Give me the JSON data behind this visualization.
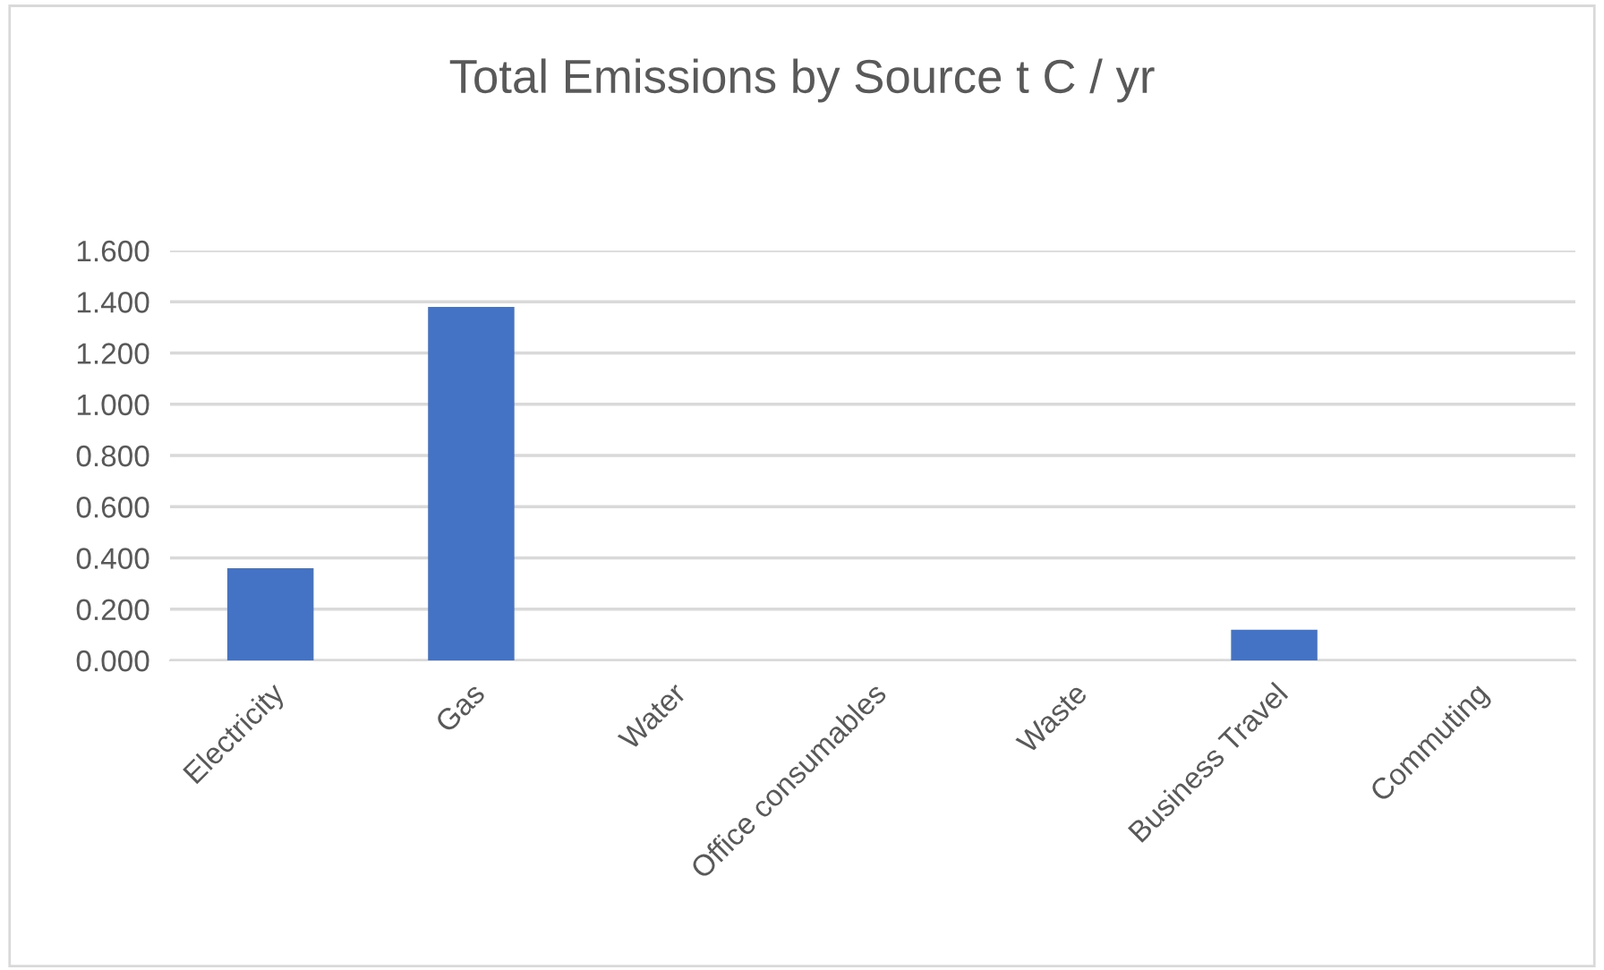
{
  "chart_data": {
    "type": "bar",
    "title": "Total Emissions by Source t C / yr",
    "categories": [
      "Electricity",
      "Gas",
      "Water",
      "Office consumables",
      "Waste",
      "Business Travel",
      "Commuting"
    ],
    "values": [
      0.36,
      1.38,
      0,
      0,
      0,
      0.12,
      0
    ],
    "color": "#4472c4",
    "ylim": [
      0,
      1.6
    ],
    "yticks": [
      {
        "value": 0,
        "label": "0.000"
      },
      {
        "value": 0.2,
        "label": "0.200"
      },
      {
        "value": 0.4,
        "label": "0.400"
      },
      {
        "value": 0.6,
        "label": "0.600"
      },
      {
        "value": 0.8,
        "label": "0.800"
      },
      {
        "value": 1.0,
        "label": "1.000"
      },
      {
        "value": 1.2,
        "label": "1.200"
      },
      {
        "value": 1.4,
        "label": "1.400"
      },
      {
        "value": 1.6,
        "label": "1.600"
      }
    ],
    "grid": "y",
    "legend": false
  }
}
